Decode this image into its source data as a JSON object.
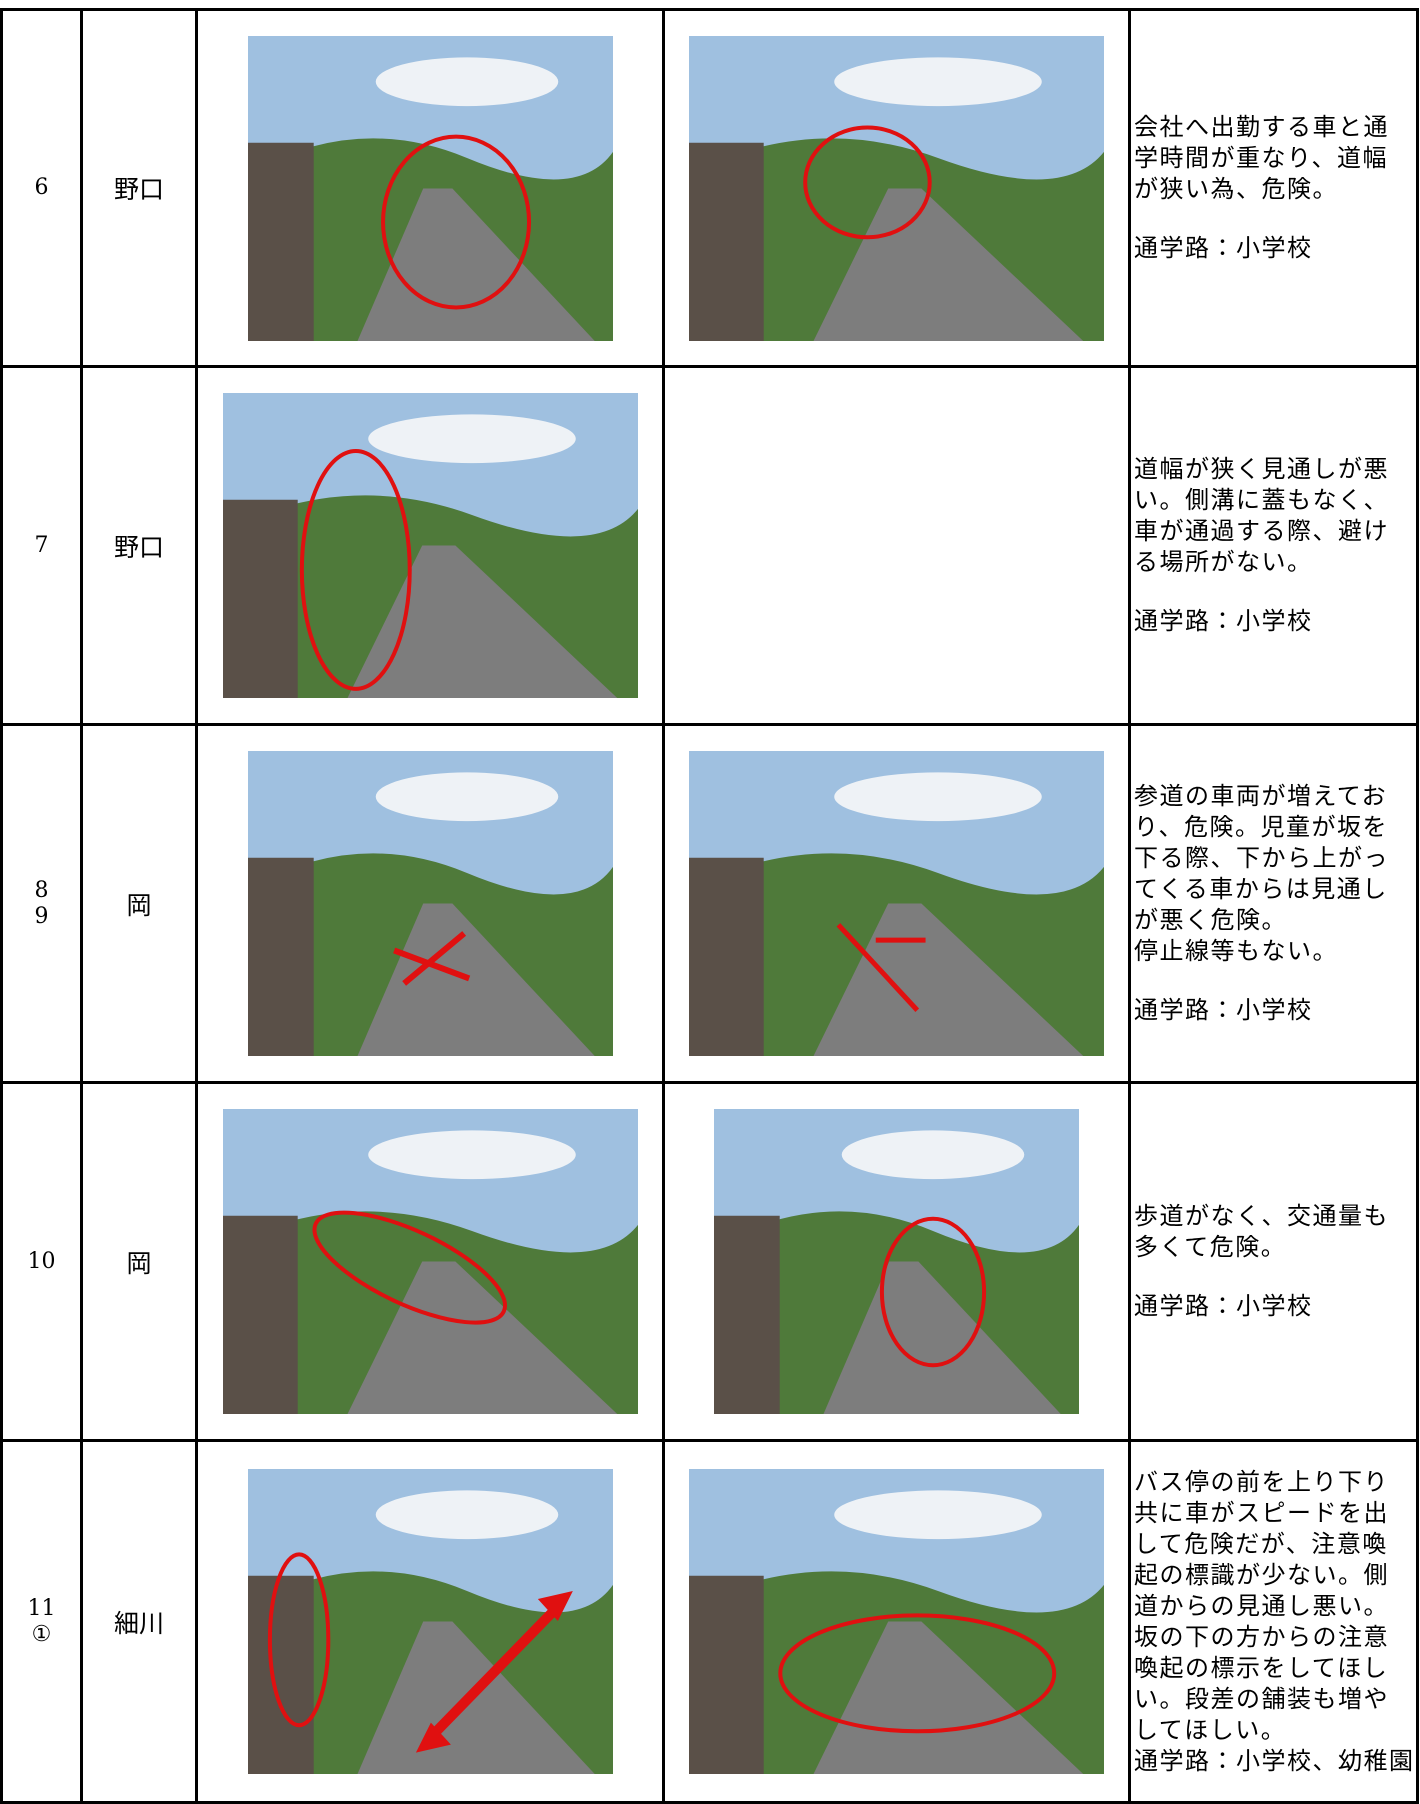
{
  "table": {
    "rows": [
      {
        "number": [
          "6"
        ],
        "place": "野口",
        "description": [
          "会社へ出勤する車と通",
          "学時間が重なり、道幅",
          "が狭い為、危険。"
        ],
        "route": "通学路：小学校"
      },
      {
        "number": [
          "7"
        ],
        "place": "野口",
        "description": [
          "道幅が狭く見通しが悪",
          "い。側溝に蓋もなく、",
          "車が通過する際、避け",
          "る場所がない。"
        ],
        "route": "通学路：小学校"
      },
      {
        "number": [
          "8",
          "9"
        ],
        "place": "岡",
        "description": [
          "参道の車両が増えてお",
          "り、危険。児童が坂を",
          "下る際、下から上がっ",
          "てくる車からは見通し",
          "が悪く危険。",
          "停止線等もない。"
        ],
        "route": "通学路：小学校"
      },
      {
        "number": [
          "10"
        ],
        "place": "岡",
        "description": [
          "歩道がなく、交通量も",
          "多くて危険。"
        ],
        "route": "通学路：小学校"
      },
      {
        "number": [
          "11",
          "①"
        ],
        "place": "細川",
        "description": [
          "バス停の前を上り下り",
          "共に車がスピードを出",
          "して危険だが、注意喚",
          "起の標識が少ない。側",
          "道からの見通し悪い。",
          "坂の下の方からの注意",
          "喚起の標示をしてほし",
          "い。段差の舗装も増や",
          "してほしい。"
        ],
        "route": "通学路：小学校、幼稚園"
      }
    ]
  }
}
